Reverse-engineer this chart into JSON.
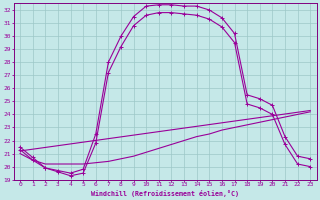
{
  "bg_color": "#c5e8e8",
  "grid_color": "#9dc8c8",
  "line_color": "#990099",
  "spine_color": "#800080",
  "xlim": [
    -0.5,
    23.5
  ],
  "ylim": [
    19,
    32.5
  ],
  "xticks": [
    0,
    1,
    2,
    3,
    4,
    5,
    6,
    7,
    8,
    9,
    10,
    11,
    12,
    13,
    14,
    15,
    16,
    17,
    18,
    19,
    20,
    21,
    22,
    23
  ],
  "yticks": [
    19,
    20,
    21,
    22,
    23,
    24,
    25,
    26,
    27,
    28,
    29,
    30,
    31,
    32
  ],
  "xlabel": "Windchill (Refroidissement éolien,°C)",
  "curve1_x": [
    0,
    1,
    2,
    3,
    4,
    5,
    6,
    7,
    8,
    9,
    10,
    11,
    12,
    13,
    14,
    15,
    16,
    17,
    18,
    19,
    20,
    21,
    22,
    23
  ],
  "curve1_y": [
    21.5,
    20.7,
    19.9,
    19.7,
    19.5,
    19.8,
    22.5,
    28.0,
    30.0,
    31.5,
    32.3,
    32.4,
    32.4,
    32.3,
    32.3,
    32.0,
    31.4,
    30.2,
    25.5,
    25.2,
    24.7,
    22.3,
    20.8,
    20.6
  ],
  "curve2_x": [
    0,
    1,
    2,
    3,
    4,
    5,
    6,
    7,
    8,
    9,
    10,
    11,
    12,
    13,
    14,
    15,
    16,
    17,
    18,
    19,
    20,
    21,
    22,
    23
  ],
  "curve2_y": [
    21.3,
    20.5,
    19.9,
    19.6,
    19.3,
    19.5,
    21.8,
    27.2,
    29.2,
    30.8,
    31.6,
    31.8,
    31.8,
    31.7,
    31.6,
    31.3,
    30.7,
    29.5,
    24.8,
    24.5,
    24.0,
    21.7,
    20.2,
    20.0
  ],
  "line3_x": [
    0,
    23
  ],
  "line3_y": [
    21.2,
    24.3
  ],
  "line4_x": [
    0,
    1,
    2,
    3,
    4,
    5,
    6,
    7,
    8,
    9,
    10,
    11,
    12,
    13,
    14,
    15,
    16,
    17,
    18,
    19,
    20,
    21,
    22,
    23
  ],
  "line4_y": [
    21.0,
    20.5,
    20.2,
    20.2,
    20.2,
    20.2,
    20.3,
    20.4,
    20.6,
    20.8,
    21.1,
    21.4,
    21.7,
    22.0,
    22.3,
    22.5,
    22.8,
    23.0,
    23.2,
    23.4,
    23.6,
    23.8,
    24.0,
    24.2
  ]
}
